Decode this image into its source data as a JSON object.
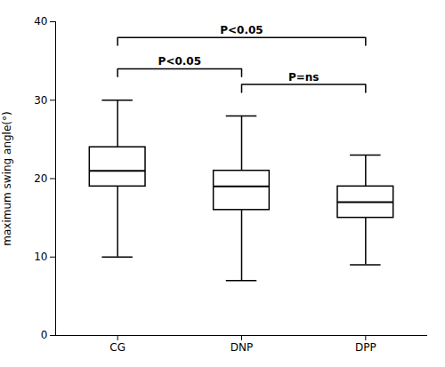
{
  "chart_data": {
    "type": "box",
    "categories": [
      "CG",
      "DNP",
      "DPP"
    ],
    "boxes": [
      {
        "min": 10,
        "q1": 19,
        "median": 21,
        "q3": 24,
        "max": 30
      },
      {
        "min": 7,
        "q1": 16,
        "median": 19,
        "q3": 21,
        "max": 28
      },
      {
        "min": 9,
        "q1": 15,
        "median": 17,
        "q3": 19,
        "max": 23
      }
    ],
    "color": "#000000",
    "ylabel": "maximum swing angle(°)",
    "ylim": [
      0,
      40
    ],
    "yticks": [
      0,
      10,
      20,
      30,
      40
    ],
    "grid": false,
    "annotations": [
      {
        "from": "CG",
        "to": "DNP",
        "label": "P<0.05"
      },
      {
        "from": "CG",
        "to": "DPP",
        "label": "P<0.05"
      },
      {
        "from": "DNP",
        "to": "DPP",
        "label": "P=ns"
      }
    ]
  }
}
